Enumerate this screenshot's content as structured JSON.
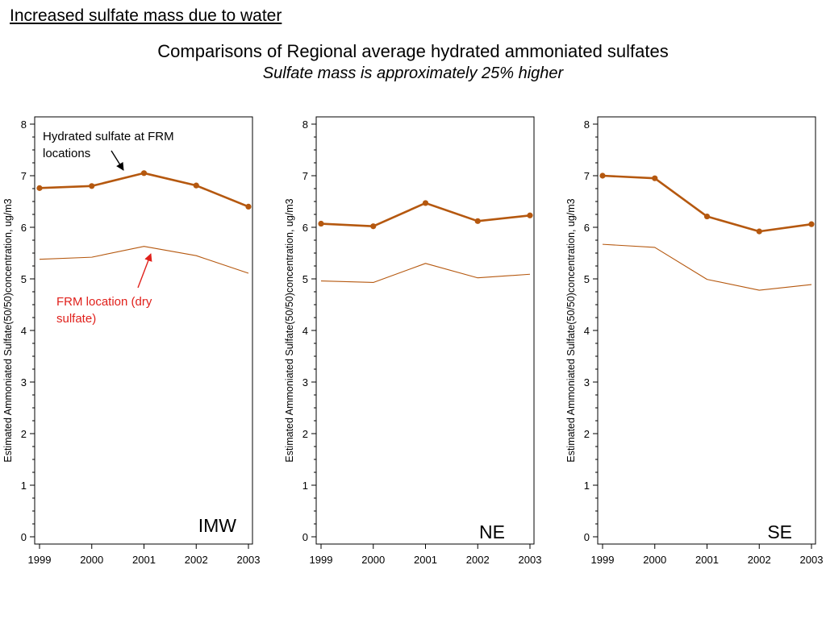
{
  "heading": "Increased sulfate mass due to water",
  "title": "Comparisons of Regional average hydrated ammoniated sulfates",
  "subtitle": "Sulfate mass is approximately 25% higher",
  "colors": {
    "series": "#b5580f",
    "annotation_red": "#e0201b",
    "annotation_black": "#000000"
  },
  "chart_data": [
    {
      "type": "line",
      "region_label": "IMW",
      "ylabel": "Estimated Ammoniated Sulfate(50/50)concentration, ug/m3",
      "x": [
        1999,
        2000,
        2001,
        2002,
        2003
      ],
      "ylim": [
        0,
        8
      ],
      "yticks": [
        0,
        1,
        2,
        3,
        4,
        5,
        6,
        7,
        8
      ],
      "series": [
        {
          "values": [
            6.76,
            6.8,
            7.05,
            6.81,
            6.4
          ],
          "markers": true
        },
        {
          "values": [
            5.38,
            5.42,
            5.63,
            5.45,
            5.11
          ],
          "markers": false
        }
      ],
      "annotations": [
        {
          "text_lines": [
            "Hydrated sulfate at FRM",
            "locations"
          ],
          "color": "black"
        },
        {
          "text_lines": [
            "FRM location (dry",
            "sulfate)"
          ],
          "color": "red"
        }
      ]
    },
    {
      "type": "line",
      "region_label": "NE",
      "ylabel": "Estimated Ammoniated Sulfate(50/50)concentration, ug/m3",
      "x": [
        1999,
        2000,
        2001,
        2002,
        2003
      ],
      "ylim": [
        0,
        8
      ],
      "yticks": [
        0,
        1,
        2,
        3,
        4,
        5,
        6,
        7,
        8
      ],
      "series": [
        {
          "values": [
            6.07,
            6.02,
            6.47,
            6.12,
            6.23
          ],
          "markers": true
        },
        {
          "values": [
            4.96,
            4.93,
            5.3,
            5.02,
            5.09
          ],
          "markers": false
        }
      ],
      "annotations": []
    },
    {
      "type": "line",
      "region_label": "SE",
      "ylabel": "Estimated Ammoniated Sulfate(50/50)concentration, ug/m3",
      "x": [
        1999,
        2000,
        2001,
        2002,
        2003
      ],
      "ylim": [
        0,
        8
      ],
      "yticks": [
        0,
        1,
        2,
        3,
        4,
        5,
        6,
        7,
        8
      ],
      "series": [
        {
          "values": [
            7.0,
            6.95,
            6.21,
            5.92,
            6.06
          ],
          "markers": true
        },
        {
          "values": [
            5.67,
            5.61,
            4.99,
            4.78,
            4.89
          ],
          "markers": false
        }
      ],
      "annotations": []
    }
  ]
}
